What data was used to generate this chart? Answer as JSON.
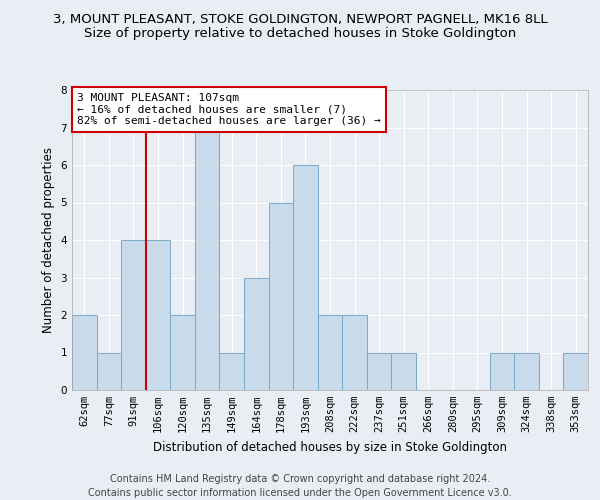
{
  "title_line1": "3, MOUNT PLEASANT, STOKE GOLDINGTON, NEWPORT PAGNELL, MK16 8LL",
  "title_line2": "Size of property relative to detached houses in Stoke Goldington",
  "xlabel": "Distribution of detached houses by size in Stoke Goldington",
  "ylabel": "Number of detached properties",
  "categories": [
    "62sqm",
    "77sqm",
    "91sqm",
    "106sqm",
    "120sqm",
    "135sqm",
    "149sqm",
    "164sqm",
    "178sqm",
    "193sqm",
    "208sqm",
    "222sqm",
    "237sqm",
    "251sqm",
    "266sqm",
    "280sqm",
    "295sqm",
    "309sqm",
    "324sqm",
    "338sqm",
    "353sqm"
  ],
  "values": [
    2,
    1,
    4,
    4,
    2,
    7,
    1,
    3,
    5,
    6,
    2,
    2,
    1,
    1,
    0,
    0,
    0,
    1,
    1,
    0,
    1
  ],
  "bar_color": "#c9daea",
  "bar_edge_color": "#7aaac8",
  "annotation_line1": "3 MOUNT PLEASANT: 107sqm",
  "annotation_line2": "← 16% of detached houses are smaller (7)",
  "annotation_line3": "82% of semi-detached houses are larger (36) →",
  "annotation_box_color": "#cc0000",
  "red_line_x": 2.5,
  "ylim": [
    0,
    8
  ],
  "yticks": [
    0,
    1,
    2,
    3,
    4,
    5,
    6,
    7,
    8
  ],
  "background_color": "#e8eef4",
  "plot_bg_color": "#e8eef4",
  "footer_line1": "Contains HM Land Registry data © Crown copyright and database right 2024.",
  "footer_line2": "Contains public sector information licensed under the Open Government Licence v3.0.",
  "title_fontsize": 9.5,
  "subtitle_fontsize": 9.5,
  "axis_label_fontsize": 8.5,
  "tick_fontsize": 7.5,
  "annotation_fontsize": 8,
  "footer_fontsize": 7
}
